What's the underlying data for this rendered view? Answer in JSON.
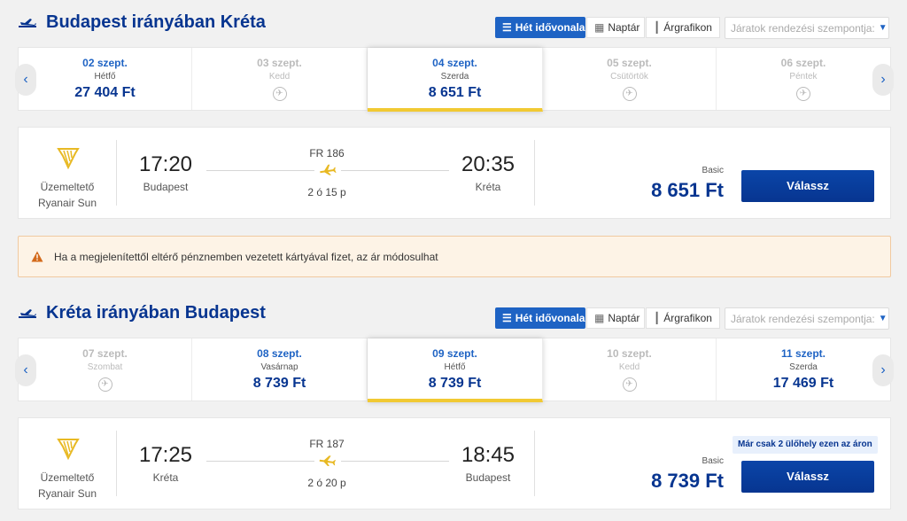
{
  "colors": {
    "accent": "#1e63c4",
    "brand_dark": "#073590",
    "highlight": "#f1c933",
    "warning": "#d36a1b"
  },
  "view_tabs": {
    "week": "Hét idővonala",
    "calendar": "Naptár",
    "price_chart": "Árgrafikon"
  },
  "sort": {
    "placeholder": "Járatok rendezési szempontja:"
  },
  "operator": {
    "label": "Üzemeltető",
    "name": "Ryanair Sun",
    "icon": "ryanair-harp-icon"
  },
  "outbound": {
    "title": "Budapest irányában Kréta",
    "dates": [
      {
        "date": "02 szept.",
        "day": "Hétfő",
        "price": "27 404 Ft",
        "available": true,
        "selected": false
      },
      {
        "date": "03 szept.",
        "day": "Kedd",
        "price": "",
        "available": false,
        "selected": false
      },
      {
        "date": "04 szept.",
        "day": "Szerda",
        "price": "8 651 Ft",
        "available": true,
        "selected": true
      },
      {
        "date": "05 szept.",
        "day": "Csütörtök",
        "price": "",
        "available": false,
        "selected": false
      },
      {
        "date": "06 szept.",
        "day": "Péntek",
        "price": "",
        "available": false,
        "selected": false
      }
    ],
    "flight": {
      "dep_time": "17:20",
      "dep_city": "Budapest",
      "arr_time": "20:35",
      "arr_city": "Kréta",
      "flight_no": "FR 186",
      "duration": "2 ó 15 p",
      "fare_label": "Basic",
      "price": "8 651 Ft",
      "select_label": "Válassz",
      "seat_notice": ""
    }
  },
  "notice": {
    "text": "Ha a megjelenítettől eltérő pénznemben vezetett kártyával fizet, az ár módosulhat"
  },
  "inbound": {
    "title": "Kréta irányában Budapest",
    "dates": [
      {
        "date": "07 szept.",
        "day": "Szombat",
        "price": "",
        "available": false,
        "selected": false
      },
      {
        "date": "08 szept.",
        "day": "Vasárnap",
        "price": "8 739 Ft",
        "available": true,
        "selected": false
      },
      {
        "date": "09 szept.",
        "day": "Hétfő",
        "price": "8 739 Ft",
        "available": true,
        "selected": true
      },
      {
        "date": "10 szept.",
        "day": "Kedd",
        "price": "",
        "available": false,
        "selected": false
      },
      {
        "date": "11 szept.",
        "day": "Szerda",
        "price": "17 469 Ft",
        "available": true,
        "selected": false
      }
    ],
    "flight": {
      "dep_time": "17:25",
      "dep_city": "Kréta",
      "arr_time": "18:45",
      "arr_city": "Budapest",
      "flight_no": "FR 187",
      "duration": "2 ó 20 p",
      "fare_label": "Basic",
      "price": "8 739 Ft",
      "select_label": "Válassz",
      "seat_notice": "Már csak 2 ülőhely ezen az áron"
    }
  }
}
